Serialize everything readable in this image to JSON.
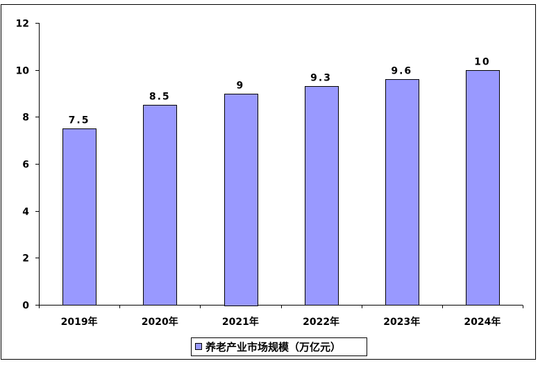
{
  "chart_data": {
    "type": "bar",
    "categories": [
      "2019年",
      "2020年",
      "2021年",
      "2022年",
      "2023年",
      "2024年"
    ],
    "series": [
      {
        "name": "养老产业市场规模（万亿元）",
        "values": [
          7.5,
          8.5,
          9,
          9.3,
          9.6,
          10
        ],
        "data_labels": [
          "7.5",
          "8.5",
          "9",
          "9.3",
          "9.6",
          "10"
        ]
      }
    ],
    "ylim": [
      0,
      12
    ],
    "yticks": [
      "0",
      "2",
      "4",
      "6",
      "8",
      "10",
      "12"
    ],
    "grid": false,
    "legend_position": "bottom-center",
    "colors": {
      "bar_fill": "#9999ff",
      "bar_stroke": "#000000",
      "axis": "#000000",
      "frame": "#000000"
    }
  }
}
